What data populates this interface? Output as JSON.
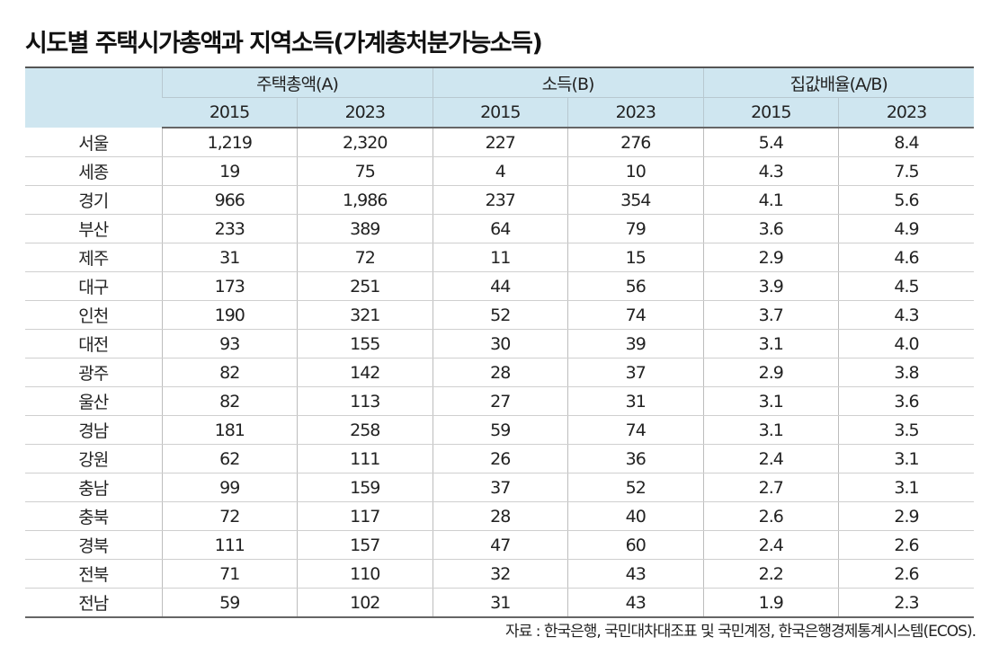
{
  "title": "시도별 주택시가총액과 지역소득(가계총처분가능소득)",
  "chart_data": {
    "type": "table",
    "column_groups": [
      "주택총액(A)",
      "소득(B)",
      "집값배율(A/B)"
    ],
    "years": [
      "2015",
      "2023"
    ],
    "rows": [
      {
        "region": "서울",
        "values": [
          "1,219",
          "2,320",
          "227",
          "276",
          "5.4",
          "8.4"
        ]
      },
      {
        "region": "세종",
        "values": [
          "19",
          "75",
          "4",
          "10",
          "4.3",
          "7.5"
        ]
      },
      {
        "region": "경기",
        "values": [
          "966",
          "1,986",
          "237",
          "354",
          "4.1",
          "5.6"
        ]
      },
      {
        "region": "부산",
        "values": [
          "233",
          "389",
          "64",
          "79",
          "3.6",
          "4.9"
        ]
      },
      {
        "region": "제주",
        "values": [
          "31",
          "72",
          "11",
          "15",
          "2.9",
          "4.6"
        ]
      },
      {
        "region": "대구",
        "values": [
          "173",
          "251",
          "44",
          "56",
          "3.9",
          "4.5"
        ]
      },
      {
        "region": "인천",
        "values": [
          "190",
          "321",
          "52",
          "74",
          "3.7",
          "4.3"
        ]
      },
      {
        "region": "대전",
        "values": [
          "93",
          "155",
          "30",
          "39",
          "3.1",
          "4.0"
        ]
      },
      {
        "region": "광주",
        "values": [
          "82",
          "142",
          "28",
          "37",
          "2.9",
          "3.8"
        ]
      },
      {
        "region": "울산",
        "values": [
          "82",
          "113",
          "27",
          "31",
          "3.1",
          "3.6"
        ]
      },
      {
        "region": "경남",
        "values": [
          "181",
          "258",
          "59",
          "74",
          "3.1",
          "3.5"
        ]
      },
      {
        "region": "강원",
        "values": [
          "62",
          "111",
          "26",
          "36",
          "2.4",
          "3.1"
        ]
      },
      {
        "region": "충남",
        "values": [
          "99",
          "159",
          "37",
          "52",
          "2.7",
          "3.1"
        ]
      },
      {
        "region": "충북",
        "values": [
          "72",
          "117",
          "28",
          "40",
          "2.6",
          "2.9"
        ]
      },
      {
        "region": "경북",
        "values": [
          "111",
          "157",
          "47",
          "60",
          "2.4",
          "2.6"
        ]
      },
      {
        "region": "전북",
        "values": [
          "71",
          "110",
          "32",
          "43",
          "2.2",
          "2.6"
        ]
      },
      {
        "region": "전남",
        "values": [
          "59",
          "102",
          "31",
          "43",
          "1.9",
          "2.3"
        ]
      }
    ],
    "header_color": "#cfe6f0"
  },
  "source": "자료 : 한국은행, 국민대차대조표 및 국민계정, 한국은행경제통계시스템(ECOS)."
}
